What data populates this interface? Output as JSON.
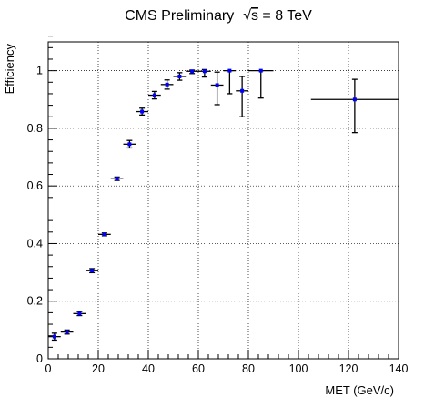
{
  "chart_data": {
    "type": "scatter",
    "title_main": "CMS Preliminary",
    "title_sqrt_symbol": "√",
    "title_sqrt_var": "s",
    "title_energy": " = 8 TeV",
    "xlabel": "MET (GeV/c)",
    "ylabel": "Efficiency",
    "xlim": [
      0,
      140
    ],
    "ylim": [
      0,
      1.1
    ],
    "x_ticks": [
      0,
      20,
      40,
      60,
      80,
      100,
      120,
      140
    ],
    "y_ticks": [
      0,
      0.2,
      0.4,
      0.6,
      0.8,
      1
    ],
    "x_tick_labels": [
      "0",
      "20",
      "40",
      "60",
      "80",
      "100",
      "120",
      "140"
    ],
    "y_tick_labels": [
      "0",
      "0.2",
      "0.4",
      "0.6",
      "0.8",
      "1"
    ],
    "grid": true,
    "marker_color": "#0000ff",
    "series": [
      {
        "points": [
          {
            "x": 2.5,
            "xlo": 0,
            "xhi": 5,
            "y": 0.077,
            "elo": 0.012,
            "ehi": 0.012
          },
          {
            "x": 7.5,
            "xlo": 5,
            "xhi": 10,
            "y": 0.093,
            "elo": 0.007,
            "ehi": 0.007
          },
          {
            "x": 12.5,
            "xlo": 10,
            "xhi": 15,
            "y": 0.157,
            "elo": 0.007,
            "ehi": 0.007
          },
          {
            "x": 17.5,
            "xlo": 15,
            "xhi": 20,
            "y": 0.306,
            "elo": 0.007,
            "ehi": 0.007
          },
          {
            "x": 22.5,
            "xlo": 20,
            "xhi": 25,
            "y": 0.432,
            "elo": 0.005,
            "ehi": 0.005
          },
          {
            "x": 27.5,
            "xlo": 25,
            "xhi": 30,
            "y": 0.625,
            "elo": 0.006,
            "ehi": 0.006
          },
          {
            "x": 32.5,
            "xlo": 30,
            "xhi": 35,
            "y": 0.745,
            "elo": 0.013,
            "ehi": 0.013
          },
          {
            "x": 37.5,
            "xlo": 35,
            "xhi": 40,
            "y": 0.858,
            "elo": 0.012,
            "ehi": 0.012
          },
          {
            "x": 42.5,
            "xlo": 40,
            "xhi": 45,
            "y": 0.915,
            "elo": 0.013,
            "ehi": 0.013
          },
          {
            "x": 47.5,
            "xlo": 45,
            "xhi": 50,
            "y": 0.952,
            "elo": 0.016,
            "ehi": 0.016
          },
          {
            "x": 52.5,
            "xlo": 50,
            "xhi": 55,
            "y": 0.98,
            "elo": 0.013,
            "ehi": 0.013
          },
          {
            "x": 57.5,
            "xlo": 55,
            "xhi": 60,
            "y": 0.998,
            "elo": 0.008,
            "ehi": 0.004
          },
          {
            "x": 62.5,
            "xlo": 60,
            "xhi": 65,
            "y": 0.998,
            "elo": 0.02,
            "ehi": 0.006
          },
          {
            "x": 67.5,
            "xlo": 65,
            "xhi": 70,
            "y": 0.95,
            "elo": 0.068,
            "ehi": 0.045
          },
          {
            "x": 72.5,
            "xlo": 70,
            "xhi": 75,
            "y": 1.0,
            "elo": 0.08,
            "ehi": 0.0
          },
          {
            "x": 77.5,
            "xlo": 75,
            "xhi": 80,
            "y": 0.93,
            "elo": 0.09,
            "ehi": 0.05
          },
          {
            "x": 85,
            "xlo": 80,
            "xhi": 90,
            "y": 1.0,
            "elo": 0.095,
            "ehi": 0.0
          },
          {
            "x": 122.5,
            "xlo": 105,
            "xhi": 140,
            "y": 0.9,
            "elo": 0.115,
            "ehi": 0.07
          }
        ]
      }
    ]
  }
}
